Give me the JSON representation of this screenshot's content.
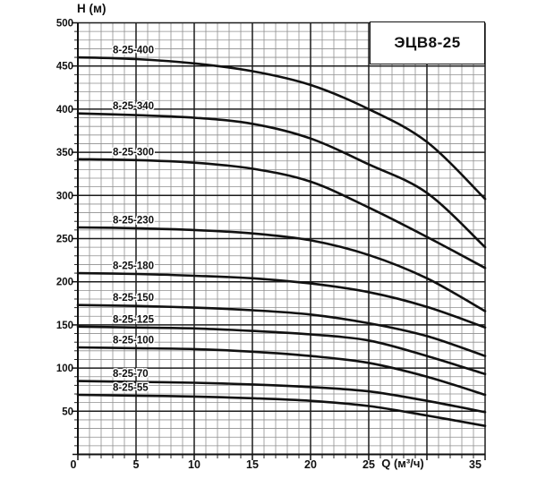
{
  "chart_data": {
    "type": "line",
    "title": "ЭЦВ8-25",
    "xlabel": "Q (м³/ч)",
    "ylabel": "H (м)",
    "xlim": [
      0,
      35
    ],
    "ylim": [
      0,
      500
    ],
    "x_minor_step": 1,
    "x_major_step": 5,
    "y_minor_step": 10,
    "y_major_step": 50,
    "xticks": [
      0,
      5,
      10,
      15,
      20,
      25,
      35
    ],
    "yticks": [
      50,
      100,
      150,
      200,
      250,
      300,
      350,
      400,
      450,
      500
    ],
    "grid": "on",
    "legend_position": "inline-labels-above-curves",
    "x": [
      0,
      5,
      10,
      15,
      20,
      25,
      30,
      35
    ],
    "series": [
      {
        "name": "8-25-400",
        "values": [
          460,
          458,
          453,
          444,
          428,
          400,
          362,
          296
        ]
      },
      {
        "name": "8-25-340",
        "values": [
          395,
          393,
          390,
          383,
          366,
          336,
          303,
          240
        ]
      },
      {
        "name": "8-25-300",
        "values": [
          342,
          341,
          338,
          331,
          316,
          286,
          252,
          216
        ]
      },
      {
        "name": "8-25-230",
        "values": [
          263,
          262,
          260,
          256,
          248,
          231,
          204,
          166
        ]
      },
      {
        "name": "8-25-180",
        "values": [
          210,
          209,
          207,
          204,
          198,
          188,
          171,
          147
        ]
      },
      {
        "name": "8-25-150",
        "values": [
          173,
          172,
          170,
          167,
          162,
          152,
          137,
          114
        ]
      },
      {
        "name": "8-25-125",
        "values": [
          148,
          147,
          146,
          143,
          139,
          132,
          114,
          93
        ]
      },
      {
        "name": "8-25-100",
        "values": [
          124,
          123,
          122,
          119,
          114,
          106,
          90,
          69
        ]
      },
      {
        "name": "8-25-70",
        "values": [
          85,
          84,
          83,
          81,
          78,
          73,
          62,
          49
        ]
      },
      {
        "name": "8-25-55",
        "values": [
          69,
          68,
          67,
          65,
          62,
          56,
          45,
          33
        ]
      }
    ],
    "colors": {
      "curve": "#111111",
      "grid_minor": "#8f8f8f",
      "grid_major": "#1c1c1c",
      "axis": "#111111",
      "text": "#111111",
      "background": "#ffffff"
    }
  }
}
